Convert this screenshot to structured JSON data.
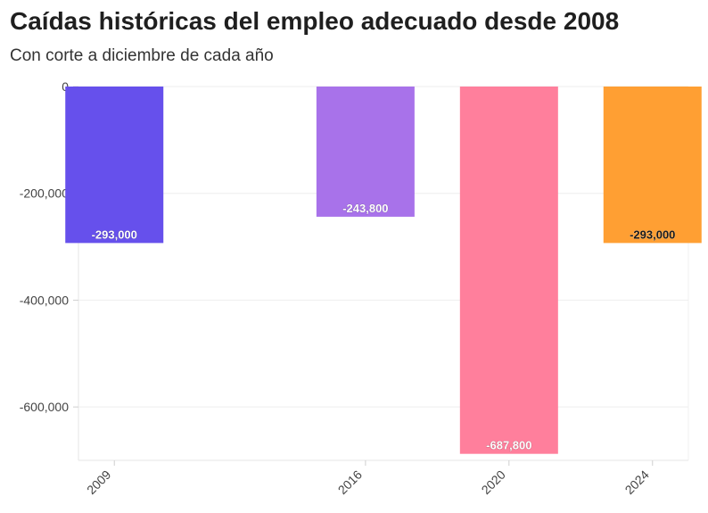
{
  "title": "Caídas históricas del empleo adecuado desde 2008",
  "subtitle": "Con corte a diciembre de cada año",
  "chart_data": {
    "type": "bar",
    "title": "Caídas históricas del empleo adecuado desde 2008",
    "subtitle": "Con corte a diciembre de cada año",
    "xlabel": "",
    "ylabel": "",
    "x_scale": "time",
    "x_domain": [
      2008,
      2025
    ],
    "categories": [
      "2009",
      "2016",
      "2020",
      "2024"
    ],
    "x": [
      2009,
      2016,
      2020,
      2024
    ],
    "values": [
      -293000,
      -243800,
      -687800,
      -293000
    ],
    "data_labels": [
      "-293,000",
      "-243,800",
      "-687,800",
      "-293,000"
    ],
    "colors": [
      "#6650ec",
      "#a872ea",
      "#ff7f9c",
      "#ff9f33"
    ],
    "label_colors": [
      "#ffffff",
      "#ffffff",
      "#ffffff",
      "#1a1a1a"
    ],
    "ylim": [
      -700000,
      0
    ],
    "y_ticks": [
      0,
      -200000,
      -400000,
      -600000
    ],
    "y_tick_labels": [
      "0",
      "-200,000",
      "-400,000",
      "-600,000"
    ],
    "grid": true,
    "legend": "none"
  }
}
